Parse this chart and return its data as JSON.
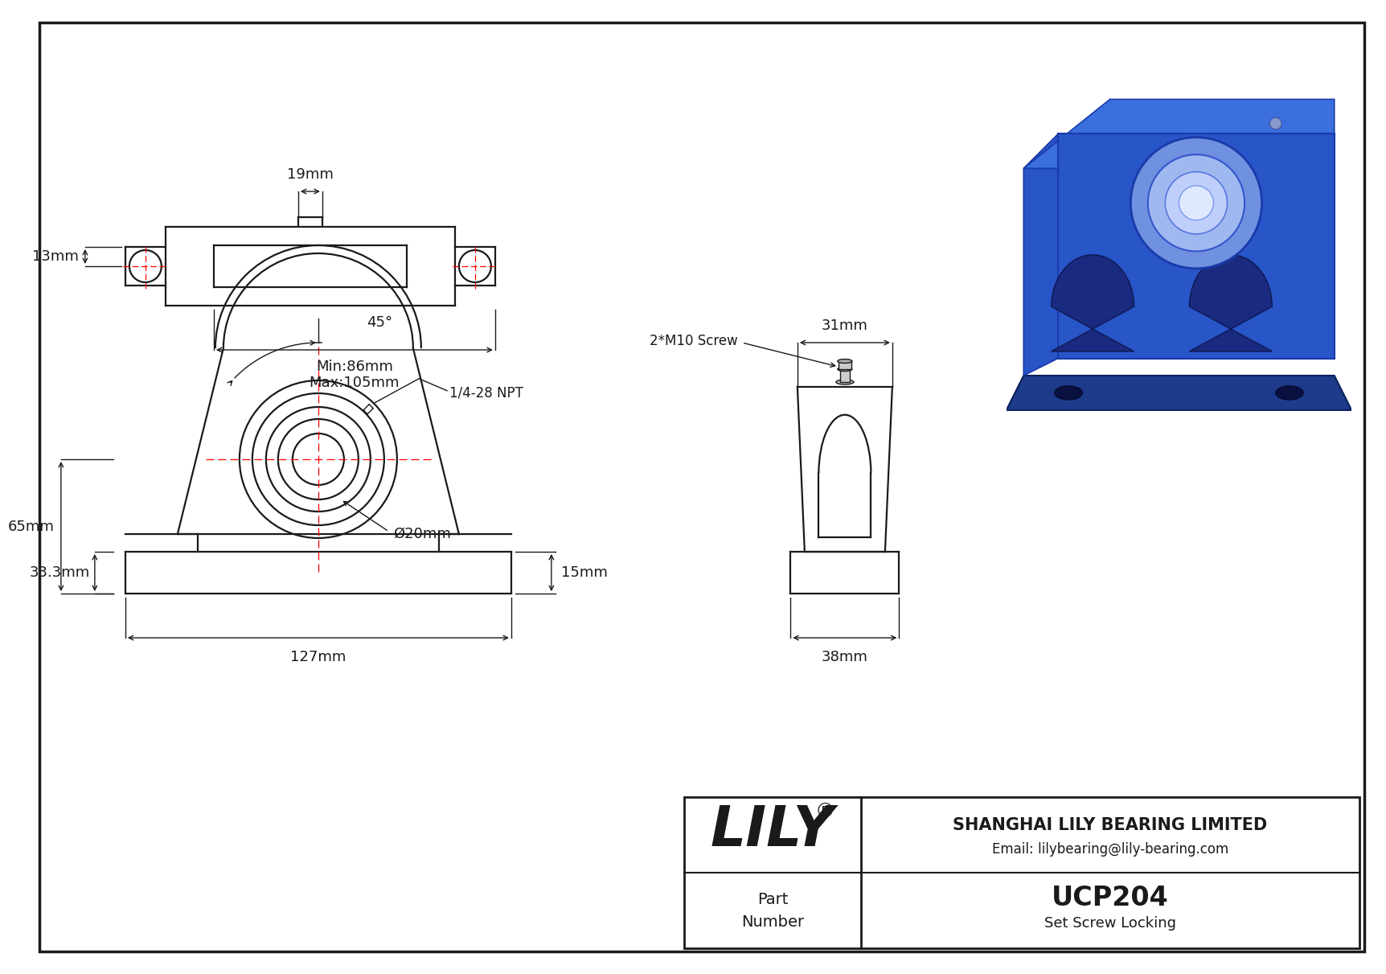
{
  "bg_color": "#ffffff",
  "line_color": "#1a1a1a",
  "dim_color": "#1a1a1a",
  "centerline_color": "#ff0000",
  "title": "UCP204",
  "subtitle": "Set Screw Locking",
  "company": "SHANGHAI LILY BEARING LIMITED",
  "email": "Email: lilybearing@lily-bearing.com",
  "brand": "LILY",
  "dims": {
    "height_total": "65mm",
    "height_base": "33.3mm",
    "width_total": "127mm",
    "shaft_dia": "Ø20mm",
    "base_height": "15mm",
    "side_width": "31mm",
    "side_base": "38mm",
    "angle": "45°",
    "screw_npt": "1/4-28 NPT",
    "screw_m10": "2*M10 Screw",
    "top_len_min": "Min:86mm",
    "top_len_max": "Max:105mm",
    "top_width": "19mm",
    "top_offset": "13mm"
  }
}
